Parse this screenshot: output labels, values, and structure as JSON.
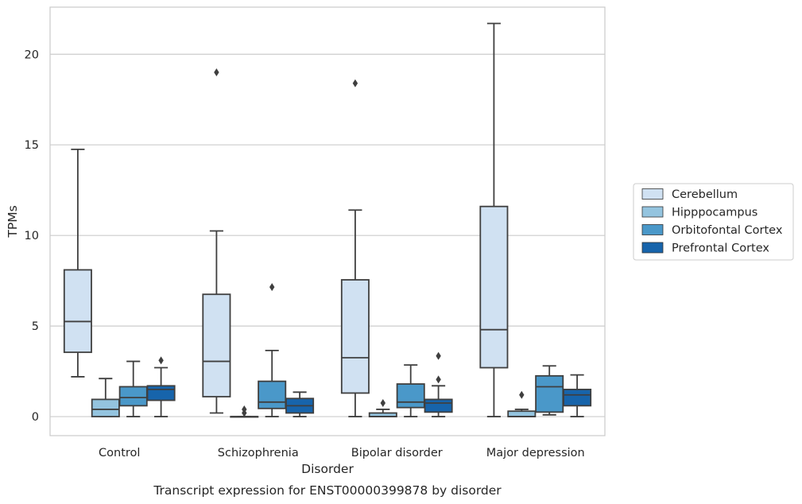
{
  "chart_data": {
    "type": "boxplot",
    "title": "",
    "caption": "Transcript expression for ENST00000399878 by disorder",
    "xlabel": "Disorder",
    "ylabel": "TPMs",
    "ylim": [
      -1.05,
      22.6
    ],
    "yticks": [
      0,
      5,
      10,
      15,
      20
    ],
    "ytick_labels": [
      "0",
      "5",
      "10",
      "15",
      "20"
    ],
    "grid": "horizontal",
    "legend_position": "right",
    "categories": [
      "Control",
      "Schizophrenia",
      "Bipolar disorder",
      "Major depression"
    ],
    "series": [
      {
        "name": "Cerebellum",
        "color": "#d0e1f2",
        "boxes": [
          {
            "whisker_low": 2.2,
            "q1": 3.55,
            "median": 5.25,
            "q3": 8.1,
            "whisker_high": 14.75,
            "outliers": []
          },
          {
            "whisker_low": 0.2,
            "q1": 1.1,
            "median": 3.05,
            "q3": 6.75,
            "whisker_high": 10.25,
            "outliers": [
              19.0
            ]
          },
          {
            "whisker_low": 0.0,
            "q1": 1.3,
            "median": 3.25,
            "q3": 7.55,
            "whisker_high": 11.4,
            "outliers": [
              18.4
            ]
          },
          {
            "whisker_low": 0.0,
            "q1": 2.7,
            "median": 4.8,
            "q3": 11.6,
            "whisker_high": 21.7,
            "outliers": []
          }
        ]
      },
      {
        "name": "Hipppocampus",
        "color": "#94c4df",
        "boxes": [
          {
            "whisker_low": 0.0,
            "q1": 0.0,
            "median": 0.4,
            "q3": 0.95,
            "whisker_high": 2.1,
            "outliers": []
          },
          {
            "whisker_low": 0.0,
            "q1": 0.0,
            "median": 0.0,
            "q3": 0.0,
            "whisker_high": 0.0,
            "outliers": [
              0.2,
              0.4
            ]
          },
          {
            "whisker_low": 0.0,
            "q1": 0.0,
            "median": 0.0,
            "q3": 0.2,
            "whisker_high": 0.4,
            "outliers": [
              0.75
            ]
          },
          {
            "whisker_low": 0.0,
            "q1": 0.0,
            "median": 0.0,
            "q3": 0.3,
            "whisker_high": 0.4,
            "outliers": [
              1.2
            ]
          }
        ]
      },
      {
        "name": "Orbitofontal Cortex",
        "color": "#4a98c9",
        "boxes": [
          {
            "whisker_low": 0.0,
            "q1": 0.6,
            "median": 1.05,
            "q3": 1.65,
            "whisker_high": 3.05,
            "outliers": []
          },
          {
            "whisker_low": 0.0,
            "q1": 0.45,
            "median": 0.8,
            "q3": 1.95,
            "whisker_high": 3.65,
            "outliers": [
              7.15
            ]
          },
          {
            "whisker_low": 0.0,
            "q1": 0.5,
            "median": 0.8,
            "q3": 1.8,
            "whisker_high": 2.85,
            "outliers": []
          },
          {
            "whisker_low": 0.1,
            "q1": 0.25,
            "median": 1.65,
            "q3": 2.25,
            "whisker_high": 2.8,
            "outliers": []
          }
        ]
      },
      {
        "name": "Prefrontal Cortex",
        "color": "#1764ab",
        "boxes": [
          {
            "whisker_low": 0.0,
            "q1": 0.9,
            "median": 1.5,
            "q3": 1.7,
            "whisker_high": 2.7,
            "outliers": [
              3.1
            ]
          },
          {
            "whisker_low": 0.0,
            "q1": 0.2,
            "median": 0.6,
            "q3": 1.0,
            "whisker_high": 1.35,
            "outliers": []
          },
          {
            "whisker_low": 0.0,
            "q1": 0.25,
            "median": 0.75,
            "q3": 0.95,
            "whisker_high": 1.7,
            "outliers": [
              2.05,
              3.35
            ]
          },
          {
            "whisker_low": 0.0,
            "q1": 0.6,
            "median": 1.2,
            "q3": 1.5,
            "whisker_high": 2.3,
            "outliers": []
          }
        ]
      }
    ]
  }
}
